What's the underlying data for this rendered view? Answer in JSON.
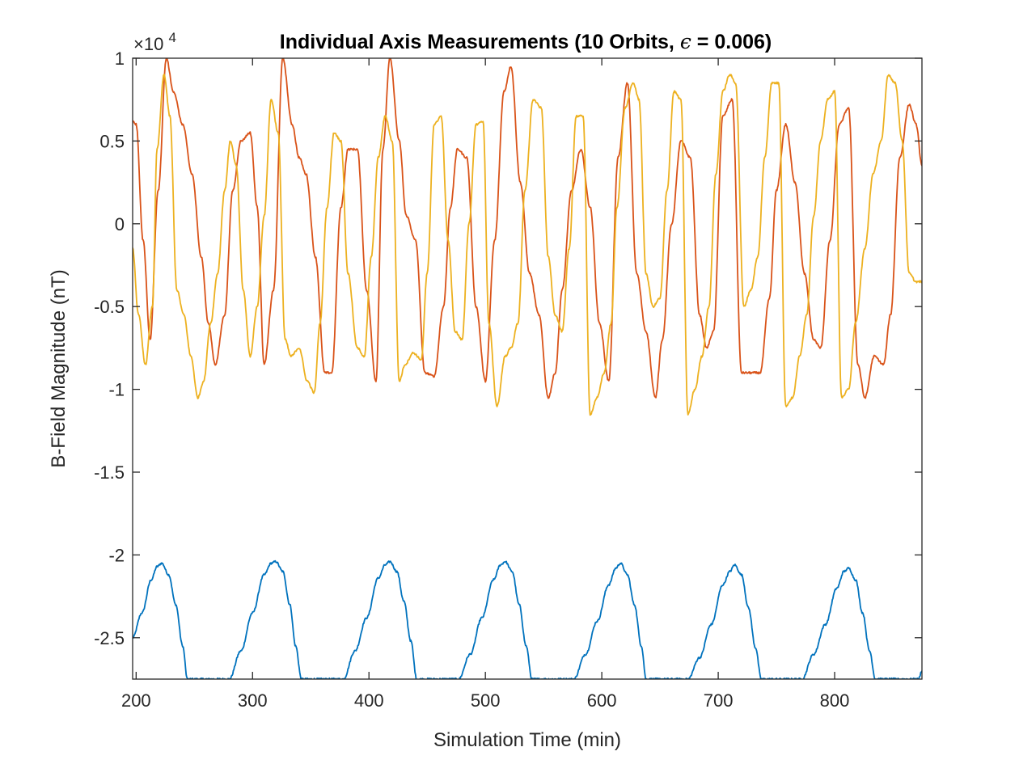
{
  "chart_data": {
    "type": "line",
    "title_prefix": "Individual Axis Measurements (10 Orbits, ",
    "title_symbol": "ϵ",
    "title_suffix": " = 0.006)",
    "xlabel": "Simulation Time (min)",
    "ylabel": "B-Field Magnitude (nT)",
    "y_multiplier_base": "×10",
    "y_multiplier_exponent": "4",
    "xlim": [
      197,
      875
    ],
    "ylim": [
      -2.75,
      1.0
    ],
    "y_scale_factor": 10000,
    "x_ticks": [
      200,
      300,
      400,
      500,
      600,
      700,
      800
    ],
    "x_tick_labels": [
      "200",
      "300",
      "400",
      "500",
      "600",
      "700",
      "800"
    ],
    "y_ticks": [
      -2.5,
      -2,
      -1.5,
      -1,
      -0.5,
      0,
      0.5,
      1
    ],
    "y_tick_labels": [
      "-2.5",
      "-2",
      "-1.5",
      "-1",
      "-0.5",
      "0",
      "0.5",
      "1"
    ],
    "grid": false,
    "colors": {
      "series1": "#0072BD",
      "series2": "#D95319",
      "series3": "#EDB120"
    },
    "series": [
      {
        "color": "#0072BD",
        "x": [
          197,
          205,
          213,
          218,
          222,
          228,
          234,
          240,
          244,
          280,
          290,
          300,
          310,
          316,
          320,
          326,
          332,
          337,
          342,
          378,
          388,
          398,
          408,
          414,
          418,
          424,
          430,
          436,
          441,
          477,
          487,
          497,
          507,
          513,
          517,
          523,
          529,
          535,
          540,
          576,
          586,
          596,
          606,
          612,
          616,
          622,
          628,
          634,
          638,
          674,
          684,
          694,
          704,
          710,
          714,
          720,
          726,
          732,
          737,
          772,
          782,
          792,
          802,
          808,
          812,
          818,
          824,
          830,
          835,
          872,
          875
        ],
        "y": [
          -2.5,
          -2.35,
          -2.15,
          -2.07,
          -2.05,
          -2.12,
          -2.3,
          -2.55,
          -2.75,
          -2.75,
          -2.58,
          -2.35,
          -2.12,
          -2.05,
          -2.04,
          -2.1,
          -2.3,
          -2.55,
          -2.75,
          -2.75,
          -2.58,
          -2.38,
          -2.14,
          -2.06,
          -2.04,
          -2.1,
          -2.28,
          -2.52,
          -2.75,
          -2.75,
          -2.6,
          -2.38,
          -2.15,
          -2.06,
          -2.04,
          -2.1,
          -2.3,
          -2.55,
          -2.75,
          -2.75,
          -2.6,
          -2.4,
          -2.18,
          -2.08,
          -2.05,
          -2.12,
          -2.3,
          -2.55,
          -2.75,
          -2.75,
          -2.62,
          -2.42,
          -2.18,
          -2.1,
          -2.06,
          -2.12,
          -2.32,
          -2.56,
          -2.75,
          -2.75,
          -2.6,
          -2.42,
          -2.2,
          -2.1,
          -2.08,
          -2.15,
          -2.35,
          -2.58,
          -2.75,
          -2.75,
          -2.7
        ]
      },
      {
        "color": "#D95319",
        "x": [
          197,
          200,
          206,
          212,
          219,
          226,
          232,
          240,
          248,
          256,
          262,
          268,
          276,
          283,
          290,
          298,
          304,
          310,
          318,
          326,
          334,
          340,
          346,
          354,
          362,
          368,
          376,
          382,
          390,
          398,
          406,
          412,
          418,
          426,
          432,
          440,
          448,
          456,
          464,
          470,
          476,
          484,
          492,
          500,
          508,
          516,
          522,
          530,
          538,
          546,
          554,
          560,
          566,
          574,
          582,
          590,
          598,
          606,
          614,
          622,
          630,
          638,
          646,
          652,
          660,
          668,
          676,
          684,
          690,
          696,
          704,
          712,
          720,
          728,
          736,
          744,
          750,
          758,
          766,
          774,
          782,
          788,
          796,
          804,
          812,
          820,
          826,
          834,
          842,
          848,
          856,
          864,
          870,
          875
        ],
        "y": [
          0.62,
          0.6,
          -0.1,
          -0.7,
          0.2,
          1.0,
          0.8,
          0.6,
          0.3,
          -0.2,
          -0.6,
          -0.85,
          -0.55,
          0.2,
          0.5,
          0.55,
          0.1,
          -0.85,
          -0.4,
          1.0,
          0.6,
          0.4,
          0.3,
          -0.2,
          -0.9,
          -0.9,
          0.1,
          0.45,
          0.45,
          -0.4,
          -0.95,
          0.45,
          1.0,
          0.5,
          0.05,
          -0.1,
          -0.9,
          -0.92,
          -0.5,
          0.1,
          0.45,
          0.4,
          -0.5,
          -0.95,
          -0.1,
          0.8,
          0.95,
          0.25,
          -0.3,
          -0.55,
          -1.05,
          -0.9,
          -0.4,
          0.2,
          0.45,
          0.1,
          -0.6,
          -0.95,
          0.4,
          0.85,
          -0.3,
          -0.65,
          -1.05,
          -0.7,
          0.0,
          0.5,
          0.4,
          -0.55,
          -0.75,
          -0.65,
          0.65,
          0.75,
          -0.9,
          -0.9,
          -0.9,
          -0.45,
          0.2,
          0.6,
          0.25,
          -0.3,
          -0.7,
          -0.75,
          -0.1,
          0.6,
          0.7,
          -0.85,
          -1.05,
          -0.8,
          -0.85,
          -0.55,
          0.4,
          0.72,
          0.6,
          0.35
        ]
      },
      {
        "color": "#EDB120",
        "x": [
          197,
          202,
          208,
          214,
          218,
          224,
          229,
          235,
          241,
          247,
          253,
          258,
          264,
          270,
          276,
          281,
          286,
          292,
          298,
          304,
          310,
          316,
          322,
          328,
          333,
          340,
          347,
          353,
          358,
          364,
          370,
          376,
          382,
          390,
          396,
          402,
          408,
          414,
          420,
          426,
          431,
          438,
          445,
          450,
          456,
          462,
          468,
          474,
          480,
          486,
          492,
          498,
          503,
          510,
          517,
          522,
          528,
          534,
          541,
          548,
          554,
          560,
          566,
          572,
          578,
          584,
          590,
          596,
          602,
          608,
          613,
          620,
          627,
          632,
          638,
          644,
          650,
          656,
          662,
          668,
          674,
          680,
          686,
          692,
          698,
          704,
          710,
          715,
          722,
          728,
          734,
          740,
          746,
          752,
          758,
          764,
          770,
          776,
          782,
          788,
          794,
          800,
          806,
          812,
          818,
          826,
          833,
          840,
          846,
          852,
          858,
          864,
          870,
          875
        ],
        "y": [
          -0.15,
          -0.55,
          -0.85,
          -0.5,
          0.45,
          0.9,
          0.65,
          -0.4,
          -0.55,
          -0.8,
          -1.05,
          -0.95,
          -0.6,
          -0.3,
          0.2,
          0.5,
          0.35,
          -0.4,
          -0.8,
          -0.5,
          0.05,
          0.75,
          0.55,
          -0.7,
          -0.8,
          -0.75,
          -0.95,
          -1.02,
          -0.6,
          0.1,
          0.55,
          0.5,
          -0.3,
          -0.75,
          -0.8,
          -0.2,
          0.4,
          0.65,
          0.5,
          -0.95,
          -0.85,
          -0.78,
          -0.82,
          -0.3,
          0.6,
          0.65,
          -0.1,
          -0.65,
          -0.7,
          0.0,
          0.6,
          0.62,
          -0.6,
          -1.1,
          -0.8,
          -0.75,
          -0.6,
          0.2,
          0.75,
          0.7,
          -0.2,
          -0.55,
          -0.65,
          -0.15,
          0.65,
          0.65,
          -1.15,
          -1.05,
          -0.9,
          -0.6,
          0.1,
          0.7,
          0.85,
          0.75,
          -0.3,
          -0.5,
          -0.45,
          0.2,
          0.8,
          0.75,
          -1.15,
          -1.0,
          -0.8,
          -0.5,
          0.3,
          0.8,
          0.9,
          0.85,
          -0.5,
          -0.4,
          -0.2,
          0.4,
          0.85,
          0.85,
          -1.1,
          -1.05,
          -0.8,
          -0.55,
          0.05,
          0.5,
          0.75,
          0.8,
          -1.05,
          -1.0,
          -0.6,
          -0.15,
          0.3,
          0.5,
          0.9,
          0.85,
          0.5,
          -0.3,
          -0.35,
          -0.35
        ]
      }
    ]
  }
}
